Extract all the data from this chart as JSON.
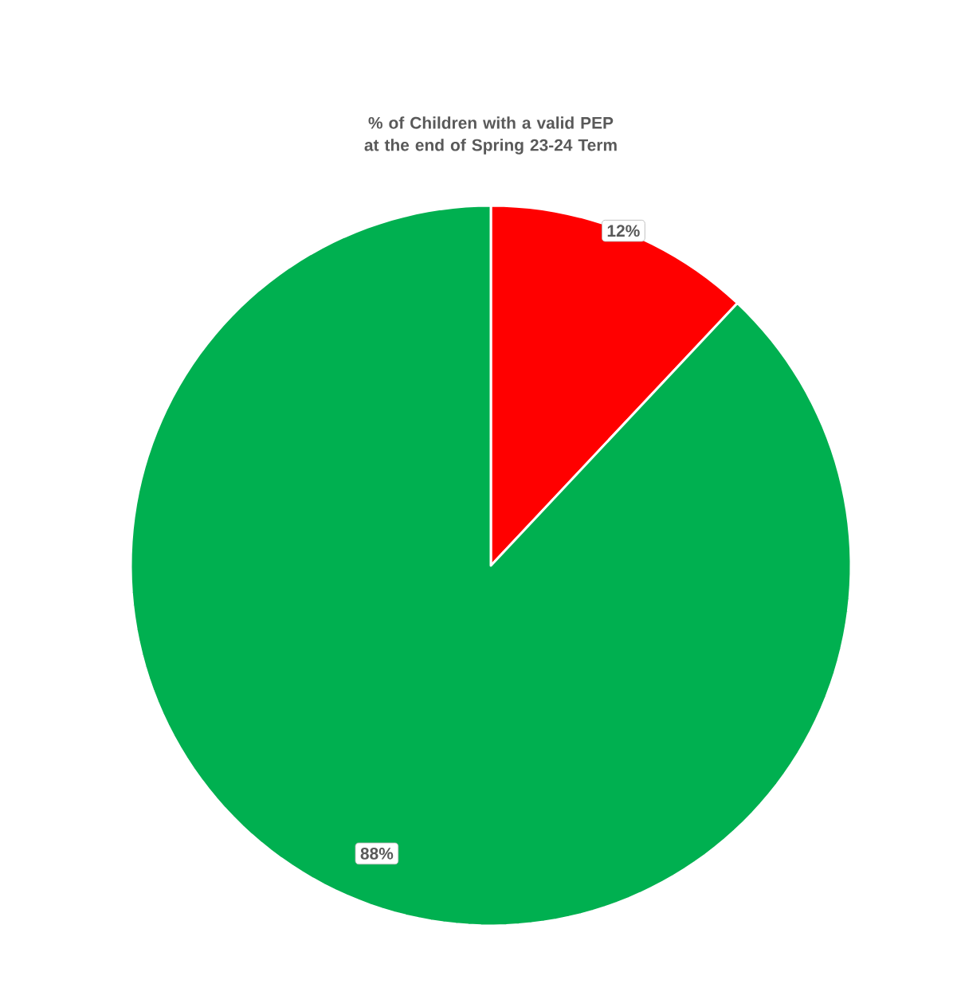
{
  "chart_data": {
    "type": "pie",
    "title": "% of Children with a valid PEP at the end of Spring 23-24 Term",
    "categories": [
      null,
      null
    ],
    "values": [
      12,
      88
    ],
    "colors": [
      "#ff0000",
      "#00b050"
    ],
    "value_labels": [
      "12%",
      "88%"
    ]
  }
}
